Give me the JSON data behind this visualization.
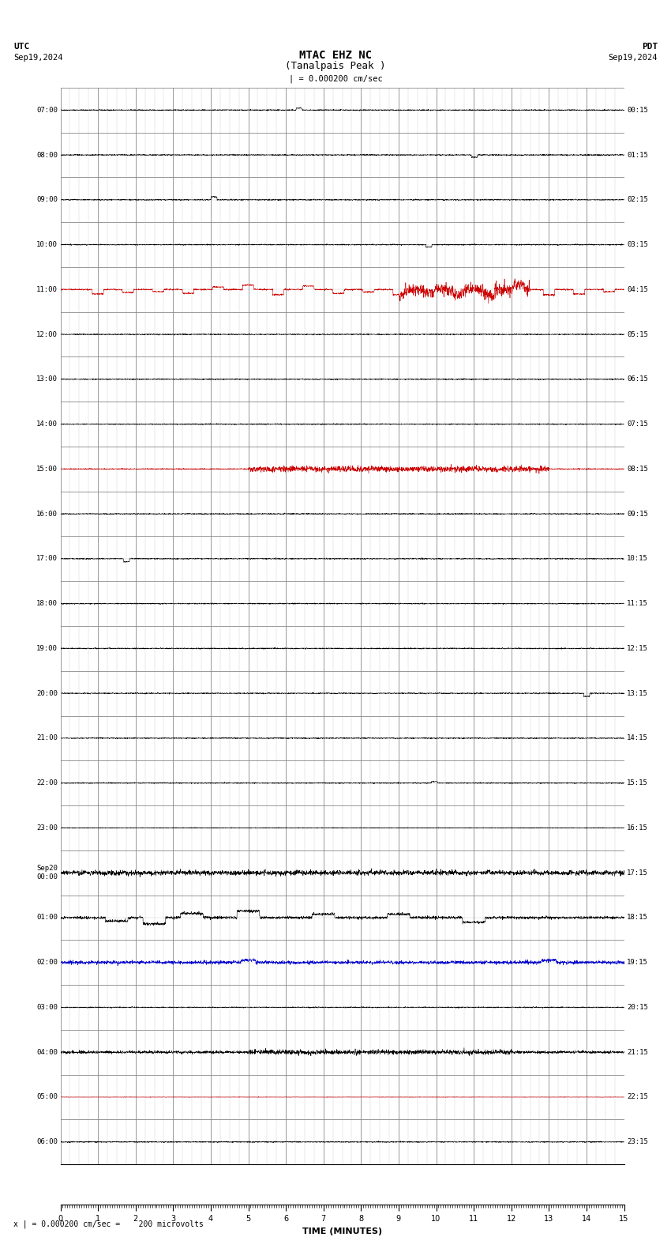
{
  "title_line1": "MTAC EHZ NC",
  "title_line2": "(Tanalpais Peak )",
  "scale_text": "= 0.000200 cm/sec",
  "utc_label": "UTC",
  "utc_date": "Sep19,2024",
  "pdt_label": "PDT",
  "pdt_date": "Sep19,2024",
  "xlabel": "TIME (MINUTES)",
  "footer_text": "= 0.000200 cm/sec =    200 microvolts",
  "x_min": 0,
  "x_max": 15,
  "num_rows": 24,
  "bg_color": "#ffffff",
  "grid_color": "#888888",
  "minor_grid_color": "#cccccc",
  "trace_color_black": "#000000",
  "trace_color_red": "#cc0000",
  "trace_color_blue": "#0000cc",
  "trace_color_green": "#006600",
  "left_labels_utc": [
    "07:00",
    "08:00",
    "09:00",
    "10:00",
    "11:00",
    "12:00",
    "13:00",
    "14:00",
    "15:00",
    "16:00",
    "17:00",
    "18:00",
    "19:00",
    "20:00",
    "21:00",
    "22:00",
    "23:00",
    "Sep20\n00:00",
    "01:00",
    "02:00",
    "03:00",
    "04:00",
    "05:00",
    "06:00"
  ],
  "right_labels_pdt": [
    "00:15",
    "01:15",
    "02:15",
    "03:15",
    "04:15",
    "05:15",
    "06:15",
    "07:15",
    "08:15",
    "09:15",
    "10:15",
    "11:15",
    "12:15",
    "13:15",
    "14:15",
    "15:15",
    "16:15",
    "17:15",
    "18:15",
    "19:15",
    "20:15",
    "21:15",
    "22:15",
    "23:15"
  ],
  "figwidth": 8.5,
  "figheight": 15.84
}
